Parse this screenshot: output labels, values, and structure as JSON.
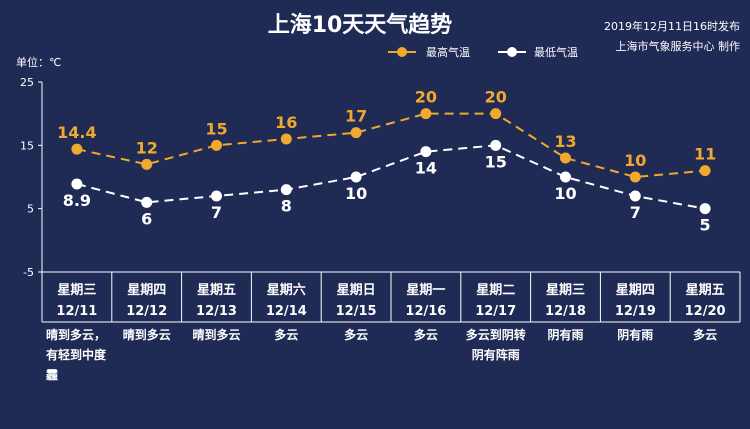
{
  "header": {
    "title": "上海10天天气趋势",
    "published": "2019年12月11日16时发布",
    "producer": "上海市气象服务中心 制作"
  },
  "chart_data": {
    "type": "line",
    "unit_label": "单位：℃",
    "ylim": [
      -5,
      25
    ],
    "yticks": [
      "25",
      "15",
      "5",
      "-5"
    ],
    "ytick_values": [
      25,
      15,
      5,
      -5
    ],
    "legend_placement": "top-right",
    "categories": [
      "12/11",
      "12/12",
      "12/13",
      "12/14",
      "12/15",
      "12/16",
      "12/17",
      "12/18",
      "12/19",
      "12/20"
    ],
    "weekdays": [
      "星期三",
      "星期四",
      "星期五",
      "星期六",
      "星期日",
      "星期一",
      "星期二",
      "星期三",
      "星期四",
      "星期五"
    ],
    "weather": [
      [
        "晴到多云，",
        "有轻到中度",
        "霾"
      ],
      [
        "晴到多云"
      ],
      [
        "晴到多云"
      ],
      [
        "多云"
      ],
      [
        "多云"
      ],
      [
        "多云"
      ],
      [
        "多云到阴转",
        "阴有阵雨"
      ],
      [
        "阴有雨"
      ],
      [
        "阴有雨"
      ],
      [
        "多云"
      ]
    ],
    "series": [
      {
        "name": "最高气温",
        "color": "#f0a92f",
        "values": [
          14.4,
          12,
          15,
          16,
          17,
          20,
          20,
          13,
          10,
          11
        ],
        "labels": [
          "14.4",
          "12",
          "15",
          "16",
          "17",
          "20",
          "20",
          "13",
          "10",
          "11"
        ]
      },
      {
        "name": "最低气温",
        "color": "#ffffff",
        "values": [
          8.9,
          6,
          7,
          8,
          10,
          14,
          15,
          10,
          7,
          5
        ],
        "labels": [
          "8.9",
          "6",
          "7",
          "8",
          "10",
          "14",
          "15",
          "10",
          "7",
          "5"
        ]
      }
    ]
  }
}
